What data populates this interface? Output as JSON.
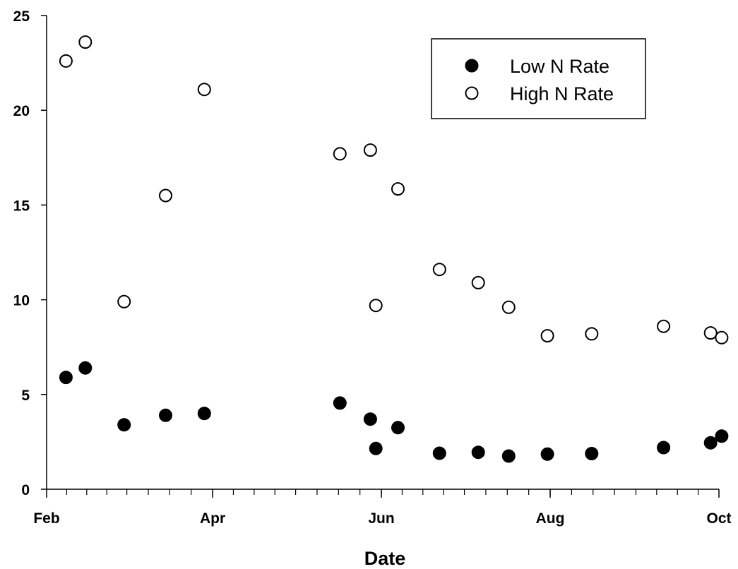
{
  "chart_data": {
    "type": "scatter",
    "title": "",
    "xlabel": "Date",
    "ylabel": "",
    "x_axis": {
      "type": "date",
      "range": [
        "2000-02-01",
        "2000-10-01"
      ],
      "tick_labels": [
        {
          "date": "2000-02-01",
          "label": "Feb"
        },
        {
          "date": "2000-04-01",
          "label": "Apr"
        },
        {
          "date": "2000-06-01",
          "label": "Jun"
        },
        {
          "date": "2000-08-01",
          "label": "Aug"
        },
        {
          "date": "2000-10-01",
          "label": "Oct"
        }
      ],
      "minor_ticks": "monthly, quarter-month spacing"
    },
    "y_axis": {
      "range": [
        0,
        25
      ],
      "ticks": [
        0,
        5,
        10,
        15,
        20,
        25
      ]
    },
    "grid": false,
    "legend_position": "top-right",
    "series": [
      {
        "name": "Low N Rate",
        "marker": "filled-circle",
        "color": "#000000",
        "points": [
          {
            "x": "2000-02-08",
            "y": 5.9
          },
          {
            "x": "2000-02-15",
            "y": 6.4
          },
          {
            "x": "2000-02-29",
            "y": 3.4
          },
          {
            "x": "2000-03-15",
            "y": 3.9
          },
          {
            "x": "2000-03-29",
            "y": 4.0
          },
          {
            "x": "2000-05-17",
            "y": 4.55
          },
          {
            "x": "2000-05-28",
            "y": 3.7
          },
          {
            "x": "2000-05-30",
            "y": 2.15
          },
          {
            "x": "2000-06-07",
            "y": 3.25
          },
          {
            "x": "2000-06-22",
            "y": 1.9
          },
          {
            "x": "2000-07-06",
            "y": 1.95
          },
          {
            "x": "2000-07-17",
            "y": 1.75
          },
          {
            "x": "2000-07-31",
            "y": 1.85
          },
          {
            "x": "2000-08-16",
            "y": 1.88
          },
          {
            "x": "2000-09-11",
            "y": 2.2
          },
          {
            "x": "2000-09-28",
            "y": 2.45
          },
          {
            "x": "2000-10-02",
            "y": 2.8
          }
        ]
      },
      {
        "name": "High N Rate",
        "marker": "open-circle",
        "color": "#000000",
        "points": [
          {
            "x": "2000-02-08",
            "y": 22.6
          },
          {
            "x": "2000-02-15",
            "y": 23.6
          },
          {
            "x": "2000-02-29",
            "y": 9.9
          },
          {
            "x": "2000-03-15",
            "y": 15.5
          },
          {
            "x": "2000-03-29",
            "y": 21.1
          },
          {
            "x": "2000-05-17",
            "y": 17.7
          },
          {
            "x": "2000-05-28",
            "y": 17.9
          },
          {
            "x": "2000-05-30",
            "y": 9.7
          },
          {
            "x": "2000-06-07",
            "y": 15.85
          },
          {
            "x": "2000-06-22",
            "y": 11.6
          },
          {
            "x": "2000-07-06",
            "y": 10.9
          },
          {
            "x": "2000-07-17",
            "y": 9.6
          },
          {
            "x": "2000-07-31",
            "y": 8.1
          },
          {
            "x": "2000-08-16",
            "y": 8.2
          },
          {
            "x": "2000-09-11",
            "y": 8.6
          },
          {
            "x": "2000-09-28",
            "y": 8.25
          },
          {
            "x": "2000-10-02",
            "y": 8.0
          }
        ]
      }
    ]
  }
}
